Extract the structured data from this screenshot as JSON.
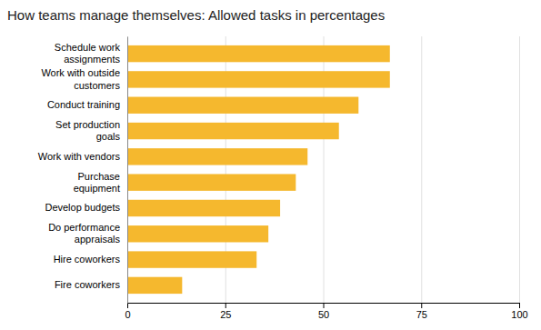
{
  "chart_data": {
    "type": "bar",
    "orientation": "horizontal",
    "title": "How teams manage themselves: Allowed tasks in percentages",
    "categories": [
      "Fire coworkers",
      "Hire coworkers",
      "Do performance\nappraisals",
      "Develop budgets",
      "Purchase\nequipment",
      "Work with vendors",
      "Set production\ngoals",
      "Conduct training",
      "Work with outside\ncustomers",
      "Schedule work\nassignments"
    ],
    "values": [
      14,
      33,
      36,
      39,
      43,
      46,
      54,
      59,
      67,
      67
    ],
    "color": "#F5B82E",
    "xlim": [
      0,
      100
    ],
    "xticks": [
      0,
      25,
      50,
      75,
      100
    ],
    "grid": true
  }
}
